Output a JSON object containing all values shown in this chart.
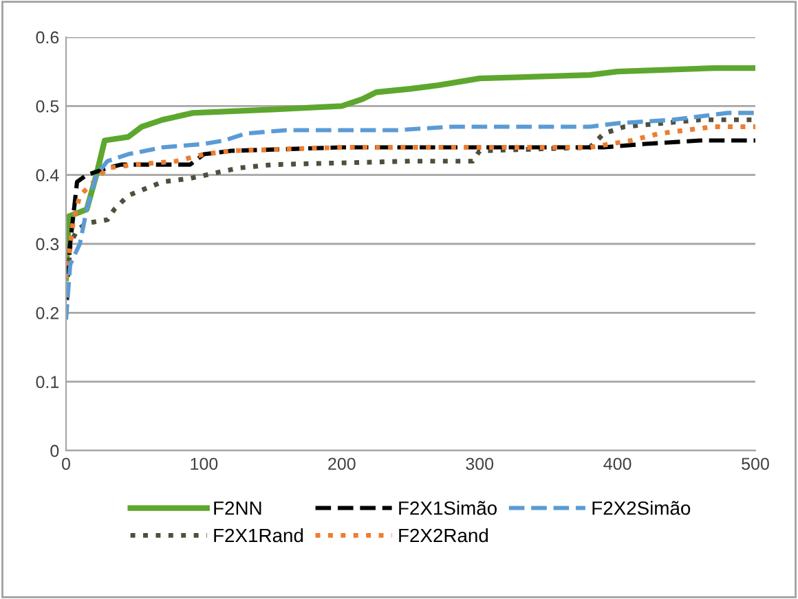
{
  "chart_data": {
    "type": "line",
    "xlim": [
      0,
      500
    ],
    "xticks": [
      0,
      100,
      200,
      300,
      400,
      500
    ],
    "ylim": [
      0,
      0.6
    ],
    "yticks": [
      0,
      0.1,
      0.2,
      0.3,
      0.4,
      0.5,
      0.6
    ],
    "grid": "y",
    "legend": "bottom",
    "series": [
      {
        "name": "F2NN",
        "color": "#5ea72e",
        "line_style": "solid",
        "x": [
          0,
          2,
          15,
          22,
          28,
          45,
          55,
          70,
          92,
          150,
          200,
          215,
          225,
          250,
          270,
          300,
          380,
          400,
          470,
          500
        ],
        "values": [
          0.25,
          0.34,
          0.35,
          0.4,
          0.45,
          0.455,
          0.47,
          0.48,
          0.49,
          0.495,
          0.5,
          0.51,
          0.52,
          0.525,
          0.53,
          0.54,
          0.545,
          0.55,
          0.555,
          0.555
        ]
      },
      {
        "name": "F2X1Rand",
        "color": "#4f4f3f",
        "line_style": "dotted",
        "x": [
          0,
          3,
          8,
          15,
          30,
          35,
          45,
          70,
          90,
          125,
          150,
          250,
          295,
          300,
          380,
          390,
          405,
          460,
          500
        ],
        "values": [
          0.2,
          0.3,
          0.32,
          0.33,
          0.335,
          0.35,
          0.37,
          0.39,
          0.395,
          0.41,
          0.415,
          0.42,
          0.42,
          0.435,
          0.44,
          0.46,
          0.47,
          0.48,
          0.48
        ]
      },
      {
        "name": "F2X1Simão",
        "color": "#000000",
        "line_style": "dashed",
        "x": [
          0,
          3,
          8,
          15,
          30,
          40,
          90,
          100,
          120,
          200,
          390,
          420,
          460,
          500
        ],
        "values": [
          0.22,
          0.3,
          0.39,
          0.4,
          0.41,
          0.415,
          0.415,
          0.43,
          0.435,
          0.44,
          0.44,
          0.445,
          0.45,
          0.45
        ]
      },
      {
        "name": "F2X2Rand",
        "color": "#ed7d31",
        "line_style": "dotted",
        "x": [
          0,
          5,
          10,
          20,
          30,
          50,
          80,
          100,
          120,
          200,
          380,
          410,
          430,
          470,
          500
        ],
        "values": [
          0.25,
          0.33,
          0.37,
          0.39,
          0.41,
          0.415,
          0.42,
          0.43,
          0.435,
          0.44,
          0.44,
          0.45,
          0.46,
          0.47,
          0.47
        ]
      },
      {
        "name": "F2X2Simão",
        "color": "#5b9bd5",
        "line_style": "dashed",
        "x": [
          0,
          3,
          10,
          15,
          22,
          30,
          45,
          70,
          100,
          115,
          130,
          160,
          240,
          280,
          380,
          400,
          440,
          480,
          500
        ],
        "values": [
          0.19,
          0.27,
          0.3,
          0.35,
          0.4,
          0.42,
          0.43,
          0.44,
          0.445,
          0.45,
          0.46,
          0.465,
          0.465,
          0.47,
          0.47,
          0.475,
          0.48,
          0.49,
          0.49
        ]
      }
    ]
  }
}
